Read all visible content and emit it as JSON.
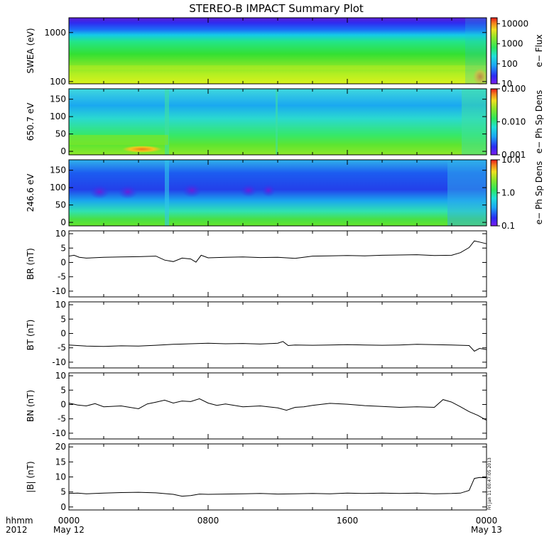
{
  "title": "STEREO-B IMPACT Summary Plot",
  "stamp": "Fri Jan 11 00:47:05 2013",
  "colors": {
    "line": "#000000",
    "frame": "#000000",
    "background": "#ffffff"
  },
  "time_axis": {
    "row1_label": "hhmm",
    "row2_label": "2012",
    "ticks": [
      {
        "time": "0000",
        "date": "May 12"
      },
      {
        "time": "0800",
        "date": ""
      },
      {
        "time": "1600",
        "date": ""
      },
      {
        "time": "0000",
        "date": "May 13"
      }
    ]
  },
  "chart_data": [
    {
      "type": "heatmap",
      "ylabel": "SWEA (eV)",
      "yscale": "log",
      "ylim": [
        90,
        2000
      ],
      "yticks": [
        "100",
        "1000"
      ],
      "colorbar": {
        "label": "e− Flux",
        "scale": "log",
        "range": [
          10,
          20000
        ],
        "ticks": [
          "10",
          "100",
          "1000",
          "10000"
        ]
      },
      "description_bands": "magenta/blue above ~1500 eV, green mid, yellow-green near 100 eV, orange near end"
    },
    {
      "type": "heatmap",
      "ylabel": "650.7 eV",
      "ylim": [
        -10,
        180
      ],
      "yticks": [
        "0",
        "50",
        "100",
        "150"
      ],
      "colorbar": {
        "label": "e− Ph Sp Dens",
        "scale": "log",
        "range": [
          0.001,
          0.1
        ],
        "ticks": [
          "0.001",
          "0.010",
          "0.100"
        ]
      }
    },
    {
      "type": "heatmap",
      "ylabel": "246.6 eV",
      "ylim": [
        -10,
        180
      ],
      "yticks": [
        "0",
        "50",
        "100",
        "150"
      ],
      "colorbar": {
        "label": "e− Ph Sp Dens",
        "scale": "log",
        "range": [
          0.1,
          10
        ],
        "ticks": [
          "0.1",
          "1.0",
          "10.0"
        ]
      }
    },
    {
      "type": "line",
      "ylabel": "BR (nT)",
      "ylim": [
        -12,
        11
      ],
      "yticks": [
        "-10",
        "-5",
        "0",
        "5",
        "10"
      ],
      "x": [
        0,
        0.3,
        0.6,
        1,
        2,
        3,
        4,
        5,
        5.5,
        6,
        6.5,
        7,
        7.3,
        7.6,
        8,
        9,
        10,
        11,
        12,
        13,
        14,
        15,
        16,
        17,
        18,
        19,
        20,
        21,
        22,
        22.5,
        23,
        23.3,
        23.6,
        24
      ],
      "values": [
        2.2,
        2.5,
        1.8,
        1.5,
        1.8,
        1.9,
        2.0,
        2.2,
        0.8,
        0.3,
        1.5,
        1.2,
        0.1,
        2.5,
        1.6,
        1.8,
        1.9,
        1.7,
        1.8,
        1.4,
        2.2,
        2.3,
        2.4,
        2.3,
        2.5,
        2.6,
        2.7,
        2.4,
        2.5,
        3.4,
        5.2,
        7.5,
        7.1,
        6.5
      ]
    },
    {
      "type": "line",
      "ylabel": "BT (nT)",
      "ylim": [
        -12,
        11
      ],
      "yticks": [
        "-10",
        "-5",
        "0",
        "5",
        "10"
      ],
      "x": [
        0,
        0.5,
        1,
        2,
        3,
        4,
        5,
        6,
        7,
        8,
        9,
        10,
        11,
        12,
        12.3,
        12.6,
        13,
        14,
        15,
        16,
        17,
        18,
        19,
        20,
        21,
        22,
        23,
        23.3,
        23.6,
        24
      ],
      "values": [
        -4.0,
        -4.2,
        -4.4,
        -4.5,
        -4.3,
        -4.4,
        -4.1,
        -3.8,
        -3.6,
        -3.4,
        -3.6,
        -3.5,
        -3.7,
        -3.4,
        -2.8,
        -4.2,
        -4.0,
        -4.1,
        -4.0,
        -3.9,
        -4.0,
        -4.1,
        -4.0,
        -3.8,
        -3.9,
        -4.0,
        -4.2,
        -6.2,
        -5.2,
        -5.6
      ]
    },
    {
      "type": "line",
      "ylabel": "BN (nT)",
      "ylim": [
        -12,
        11
      ],
      "yticks": [
        "-10",
        "-5",
        "0",
        "5",
        "10"
      ],
      "x": [
        0,
        0.5,
        1,
        1.5,
        2,
        3,
        4,
        4.5,
        5,
        5.5,
        6,
        6.5,
        7,
        7.5,
        8,
        8.5,
        9,
        10,
        11,
        12,
        12.5,
        13,
        13.5,
        14,
        15,
        16,
        17,
        18,
        19,
        20,
        21,
        21.5,
        22,
        22.5,
        23,
        23.5,
        24
      ],
      "values": [
        0.5,
        -0.2,
        -0.5,
        0.3,
        -0.8,
        -0.5,
        -1.5,
        0.2,
        0.8,
        1.5,
        0.5,
        1.2,
        1.0,
        2.0,
        0.5,
        -0.3,
        0.2,
        -0.8,
        -0.5,
        -1.2,
        -2.0,
        -1.0,
        -0.8,
        -0.3,
        0.4,
        0.1,
        -0.4,
        -0.7,
        -1.0,
        -0.8,
        -1.0,
        1.7,
        0.8,
        -0.8,
        -2.5,
        -3.8,
        -5.5
      ]
    },
    {
      "type": "line",
      "ylabel": "|B| (nT)",
      "ylim": [
        -1,
        21
      ],
      "yticks": [
        "0",
        "5",
        "10",
        "15",
        "20"
      ],
      "x": [
        0,
        0.5,
        1,
        2,
        3,
        4,
        5,
        6,
        6.5,
        7,
        7.5,
        8,
        9,
        10,
        11,
        12,
        13,
        14,
        15,
        16,
        17,
        18,
        19,
        20,
        21,
        22,
        22.5,
        23,
        23.3,
        23.6,
        24
      ],
      "values": [
        4.5,
        4.6,
        4.4,
        4.6,
        4.8,
        4.9,
        4.7,
        4.2,
        3.6,
        3.8,
        4.3,
        4.2,
        4.3,
        4.4,
        4.5,
        4.3,
        4.4,
        4.5,
        4.4,
        4.6,
        4.5,
        4.6,
        4.5,
        4.6,
        4.4,
        4.5,
        4.6,
        5.5,
        9.5,
        9.8,
        9.7
      ]
    }
  ]
}
